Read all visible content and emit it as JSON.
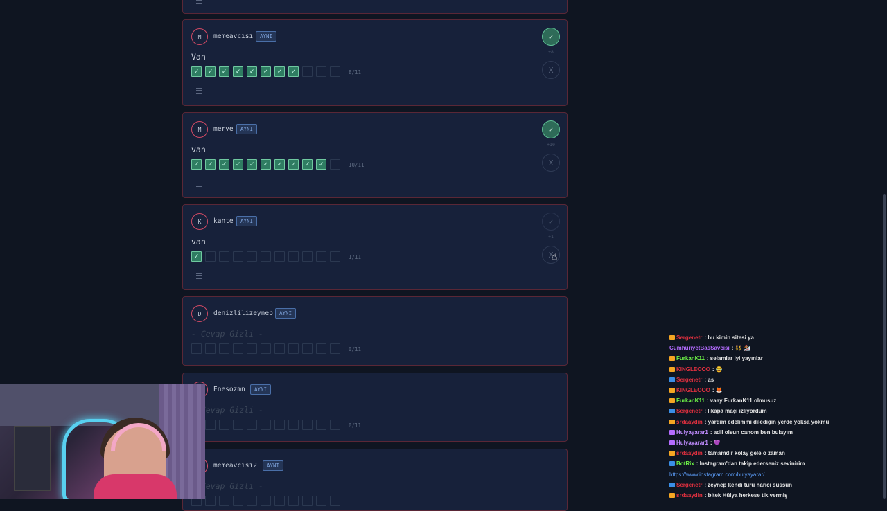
{
  "cards": [
    {
      "initial": "M",
      "username": "memeavcısı",
      "badge": "AYNI",
      "answer": "Van",
      "checked": 8,
      "total": 11,
      "count": "8/11",
      "points": "+8",
      "accept": "✓",
      "reject": "X",
      "accepted": true
    },
    {
      "initial": "M",
      "username": "merve",
      "badge": "AYNI",
      "answer": "van",
      "checked": 10,
      "total": 11,
      "count": "10/11",
      "points": "+10",
      "accept": "✓",
      "reject": "X",
      "accepted": true
    },
    {
      "initial": "K",
      "username": "kante",
      "badge": "AYNI",
      "answer": "van",
      "checked": 1,
      "total": 11,
      "count": "1/11",
      "points": "+1",
      "accept": "✓",
      "reject": "X",
      "accepted": false
    },
    {
      "initial": "D",
      "username": "denizlilizeynep",
      "badge": "AYNI",
      "hidden": "- Cevap Gizli -",
      "checked": 0,
      "total": 11,
      "count": "0/11"
    },
    {
      "initial": "E",
      "username": "Enesozmn",
      "badge": "AYNI",
      "hidden": "- Cevap Gizli -",
      "checked": 0,
      "total": 11,
      "count": "0/11"
    },
    {
      "initial": "M",
      "username": "memeavcısı2",
      "badge": "AYNI",
      "hidden": "- Cevap Gizli -",
      "checked": 0,
      "total": 11,
      "count": ""
    }
  ],
  "icons": {
    "list": "list-icon",
    "cursor": "hand-cursor-icon"
  },
  "chat": [
    {
      "user": "Sergenetr",
      "text": ": bu kimin sitesi ya",
      "color": "#e0303f",
      "icon": "#f5a623"
    },
    {
      "user": "CumhuriyetBasSavcisi",
      "text": ": 👯 🏂",
      "color": "#b46cff",
      "icon": ""
    },
    {
      "user": "FurkanK11",
      "text": ": selamlar iyi yayınlar",
      "color": "#6cf046",
      "icon": "#f5a623"
    },
    {
      "user": "KINGLEOOO",
      "text": ": 😂",
      "color": "#e0303f",
      "icon": "#f5a623"
    },
    {
      "user": "Sergenetr",
      "text": ": as",
      "color": "#e0303f",
      "icon": "#3a8ee6"
    },
    {
      "user": "KINGLEOOO",
      "text": ": 🦊",
      "color": "#e0303f",
      "icon": "#f5a623"
    },
    {
      "user": "FurkanK11",
      "text": ": vaay FurkanK11 olmusuz",
      "color": "#6cf046",
      "icon": "#f5a623"
    },
    {
      "user": "Sergenetr",
      "text": ": likapa maçı izliyordum",
      "color": "#e0303f",
      "icon": "#3a8ee6"
    },
    {
      "user": "srdaaydin",
      "text": ": yardım edelimmi dilediğin yerde yoksa yokmu",
      "color": "#e0303f",
      "icon": "#f5a623"
    },
    {
      "user": "Hulyayarar1",
      "text": ": adil olsun canom ben bulayım",
      "color": "#c08cff",
      "icon": "#b46cff"
    },
    {
      "user": "Hulyayarar1",
      "text": ": 💜",
      "color": "#c08cff",
      "icon": "#b46cff"
    },
    {
      "user": "srdaaydin",
      "text": ": tamamdır kolay gele o zaman",
      "color": "#e0303f",
      "icon": "#f5a623"
    },
    {
      "user": "BotRix",
      "text": ": Instagram'dan takip ederseniz sevinirim",
      "color": "#6cf046",
      "icon": "#3a8ee6"
    },
    {
      "user": "",
      "text": "https://www.instagram.com/hulyayarar/",
      "color": "#5b9bf5",
      "icon": "",
      "link": true
    },
    {
      "user": "Sergenetr",
      "text": ": zeynep kendi turu harici sussun",
      "color": "#e0303f",
      "icon": "#3a8ee6"
    },
    {
      "user": "srdaaydin",
      "text": ": bitek Hülya herkese tik vermiş",
      "color": "#e0303f",
      "icon": "#f5a623"
    }
  ]
}
